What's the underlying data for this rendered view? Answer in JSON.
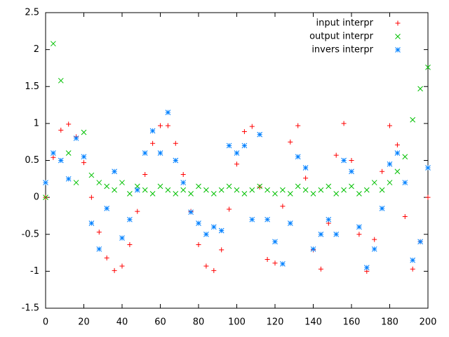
{
  "chart_data": {
    "type": "scatter",
    "x": [
      0,
      4,
      8,
      12,
      16,
      20,
      24,
      28,
      32,
      36,
      40,
      44,
      48,
      52,
      56,
      60,
      64,
      68,
      72,
      76,
      80,
      84,
      88,
      92,
      96,
      100,
      104,
      108,
      112,
      116,
      120,
      124,
      128,
      132,
      136,
      140,
      144,
      148,
      152,
      156,
      160,
      164,
      168,
      172,
      176,
      180,
      184,
      188,
      192,
      196,
      200
    ],
    "series": [
      {
        "name": "input interpr",
        "color": "#ff0000",
        "values": [
          0,
          0.54,
          0.91,
          0.99,
          0.82,
          0.47,
          0,
          -0.47,
          -0.82,
          -0.99,
          -0.93,
          -0.64,
          -0.19,
          0.31,
          0.73,
          0.97,
          0.97,
          0.73,
          0.31,
          -0.19,
          -0.64,
          -0.93,
          -0.99,
          -0.71,
          -0.16,
          0.45,
          0.89,
          0.96,
          0.14,
          -0.84,
          -0.89,
          -0.12,
          0.75,
          0.97,
          0.26,
          -0.71,
          -0.97,
          -0.35,
          0.57,
          1,
          0.5,
          -0.5,
          -1,
          -0.57,
          0.35,
          0.97,
          0.71,
          -0.26,
          -0.97,
          -0.6,
          0
        ]
      },
      {
        "name": "output interpr",
        "color": "#00c000",
        "values": [
          0,
          2.08,
          1.58,
          0.6,
          0.2,
          0.88,
          0.3,
          0.2,
          0.15,
          0.1,
          0.2,
          0.05,
          0.15,
          0.1,
          0.05,
          0.15,
          0.1,
          0.05,
          0.1,
          0.05,
          0.15,
          0.1,
          0.05,
          0.1,
          0.15,
          0.1,
          0.05,
          0.1,
          0.15,
          0.1,
          0.05,
          0.1,
          0.05,
          0.15,
          0.1,
          0.05,
          0.1,
          0.15,
          0.05,
          0.1,
          0.15,
          0.05,
          0.1,
          0.2,
          0.1,
          0.2,
          0.35,
          0.55,
          1.05,
          1.47,
          1.76
        ]
      },
      {
        "name": "invers interpr",
        "color": "#0080ff",
        "values": [
          0.2,
          0.6,
          0.5,
          0.25,
          0.8,
          0.55,
          -0.35,
          -0.7,
          -0.15,
          0.35,
          -0.55,
          -0.3,
          0.1,
          0.6,
          0.9,
          0.6,
          1.15,
          0.5,
          0.2,
          -0.2,
          -0.35,
          -0.5,
          -0.4,
          -0.45,
          0.7,
          0.6,
          0.7,
          -0.3,
          0.85,
          -0.3,
          -0.6,
          -0.9,
          -0.35,
          0.55,
          0.4,
          -0.7,
          -0.5,
          -0.3,
          -0.5,
          0.5,
          0.35,
          -0.4,
          -0.95,
          -0.7,
          -0.15,
          0.45,
          0.6,
          0.2,
          -0.85,
          -0.6,
          0.4
        ]
      }
    ],
    "xlim": [
      0,
      200
    ],
    "xticks": [
      0,
      20,
      40,
      60,
      80,
      100,
      120,
      140,
      160,
      180,
      200
    ],
    "ylim": [
      -1.5,
      2.5
    ],
    "yticks": [
      -1.5,
      -1,
      -0.5,
      0,
      0.5,
      1,
      1.5,
      2,
      2.5
    ],
    "legend": "upper right",
    "grid": false
  }
}
